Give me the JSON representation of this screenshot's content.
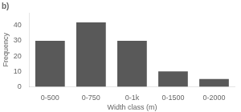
{
  "chart_data": {
    "type": "bar",
    "title": "b)",
    "categories": [
      "0-500",
      "0-750",
      "0-1k",
      "0-1500",
      "0-2000"
    ],
    "values": [
      30,
      42,
      30,
      10,
      5
    ],
    "color": "#595959",
    "x_label": "Width class (m)",
    "y_label": "Frequency",
    "ylim": [
      0,
      48.3
    ],
    "yticks": [
      0,
      10,
      20,
      30,
      40
    ],
    "grid": false
  }
}
